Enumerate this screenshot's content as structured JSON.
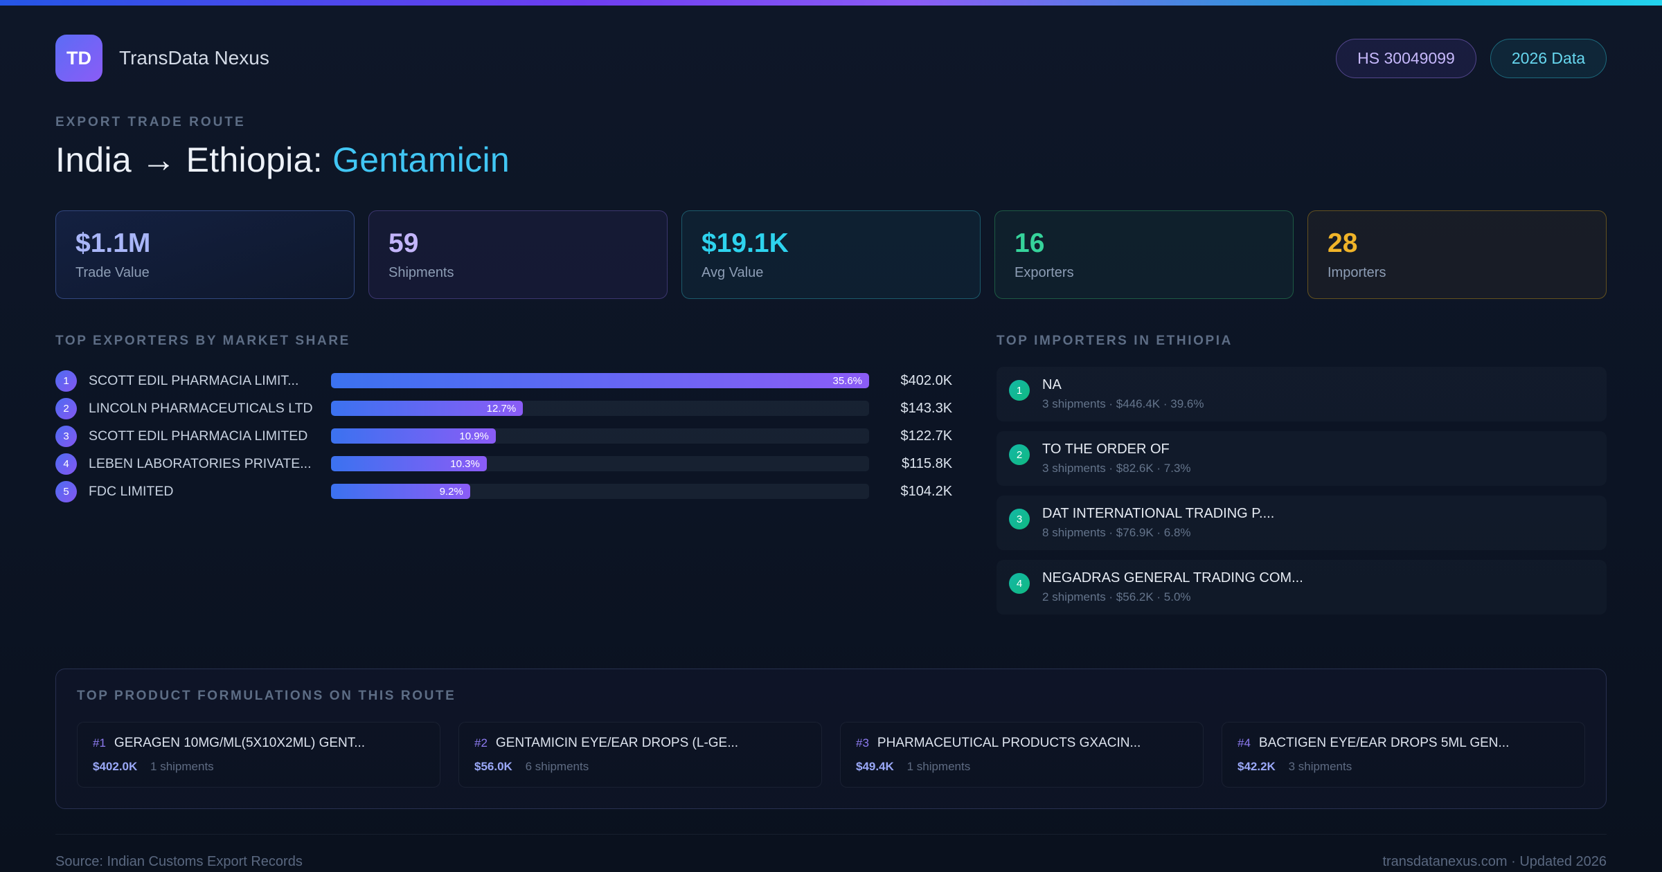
{
  "brand": {
    "logo": "TD",
    "name": "TransData Nexus"
  },
  "header": {
    "hs_pill": "HS 30049099",
    "year_pill": "2026 Data",
    "eyebrow": "EXPORT TRADE ROUTE",
    "title_route": "India → Ethiopia: ",
    "title_product": "Gentamicin"
  },
  "stats": [
    {
      "value": "$1.1M",
      "label": "Trade Value"
    },
    {
      "value": "59",
      "label": "Shipments"
    },
    {
      "value": "$19.1K",
      "label": "Avg Value"
    },
    {
      "value": "16",
      "label": "Exporters"
    },
    {
      "value": "28",
      "label": "Importers"
    }
  ],
  "exporters": {
    "heading": "TOP EXPORTERS BY MARKET SHARE",
    "rows": [
      {
        "rank": "1",
        "name": "SCOTT EDIL PHARMACIA LIMIT...",
        "share_label": "35.6%",
        "share_pct": 35.6,
        "value": "$402.0K"
      },
      {
        "rank": "2",
        "name": "LINCOLN PHARMACEUTICALS LTD",
        "share_label": "12.7%",
        "share_pct": 12.7,
        "value": "$143.3K"
      },
      {
        "rank": "3",
        "name": "SCOTT EDIL PHARMACIA LIMITED",
        "share_label": "10.9%",
        "share_pct": 10.9,
        "value": "$122.7K"
      },
      {
        "rank": "4",
        "name": "LEBEN LABORATORIES PRIVATE...",
        "share_label": "10.3%",
        "share_pct": 10.3,
        "value": "$115.8K"
      },
      {
        "rank": "5",
        "name": "FDC LIMITED",
        "share_label": "9.2%",
        "share_pct": 9.2,
        "value": "$104.2K"
      }
    ]
  },
  "importers": {
    "heading": "TOP IMPORTERS IN ETHIOPIA",
    "rows": [
      {
        "rank": "1",
        "name": "NA",
        "meta": "3 shipments · $446.4K · 39.6%"
      },
      {
        "rank": "2",
        "name": "TO THE ORDER OF",
        "meta": "3 shipments · $82.6K · 7.3%"
      },
      {
        "rank": "3",
        "name": "DAT INTERNATIONAL TRADING P....",
        "meta": "8 shipments · $76.9K · 6.8%"
      },
      {
        "rank": "4",
        "name": "NEGADRAS GENERAL TRADING COM...",
        "meta": "2 shipments · $56.2K · 5.0%"
      }
    ]
  },
  "products": {
    "heading": "TOP PRODUCT FORMULATIONS ON THIS ROUTE",
    "cards": [
      {
        "rank": "#1",
        "name": "GERAGEN 10MG/ML(5X10X2ML) GENT...",
        "value": "$402.0K",
        "shipments": "1 shipments"
      },
      {
        "rank": "#2",
        "name": "GENTAMICIN EYE/EAR DROPS (L-GE...",
        "value": "$56.0K",
        "shipments": "6 shipments"
      },
      {
        "rank": "#3",
        "name": "PHARMACEUTICAL PRODUCTS GXACIN...",
        "value": "$49.4K",
        "shipments": "1 shipments"
      },
      {
        "rank": "#4",
        "name": "BACTIGEN EYE/EAR DROPS 5ML GEN...",
        "value": "$42.2K",
        "shipments": "3 shipments"
      }
    ]
  },
  "footer": {
    "source": "Source: Indian Customs Export Records",
    "site": "transdatanexus.com · Updated 2026"
  },
  "colors": {
    "accent_cyan": "#41c6f4",
    "accent_purple": "#8b5cf6",
    "accent_blue": "#3b72f0",
    "accent_green": "#10b981",
    "accent_amber": "#f0b429"
  }
}
